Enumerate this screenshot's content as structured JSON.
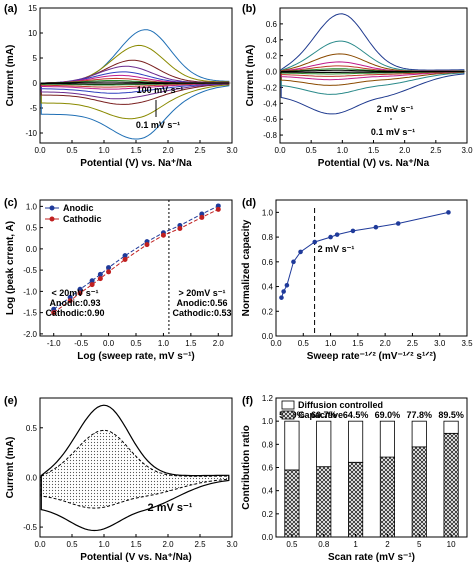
{
  "figure": {
    "panels": [
      {
        "id": "a",
        "panel_label": "(a)",
        "xlabel": "Potential (V) vs. Na⁺/Na",
        "ylabel": "Current (mA)"
      },
      {
        "id": "b",
        "panel_label": "(b)",
        "xlabel": "Potential (V) vs. Na⁺/Na",
        "ylabel": "Current (mA)"
      },
      {
        "id": "c",
        "panel_label": "(c)",
        "xlabel": "Log (sweep rate, mV s⁻¹)",
        "ylabel": "Log (peak crrent, A)"
      },
      {
        "id": "d",
        "panel_label": "(d)",
        "xlabel": "Sweep rate⁻¹ᐟ² (mV⁻¹ᐟ² s¹ᐟ²)",
        "ylabel": "Normalized capacity"
      },
      {
        "id": "e",
        "panel_label": "(e)",
        "xlabel": "Potential (V vs. Na⁺/Na)",
        "ylabel": "Current (mA)"
      },
      {
        "id": "f",
        "panel_label": "(f)",
        "xlabel": "Scan rate (mV s⁻¹)",
        "ylabel": "Contribution ratio"
      }
    ]
  },
  "chart_data": [
    {
      "id": "a",
      "type": "line",
      "panel_label": "(a)",
      "xlabel": "Potential (V) vs. Na⁺/Na",
      "ylabel": "Current (mA)",
      "xlim": [
        0,
        3
      ],
      "ylim": [
        -12,
        15
      ],
      "xticks": [
        "0.0",
        "0.5",
        "1.0",
        "1.5",
        "2.0",
        "2.5",
        "3.0"
      ],
      "yticks": [
        "-10",
        "-5",
        "0",
        "5",
        "10",
        "15"
      ],
      "annotations": [
        "100 mV s⁻¹",
        "0.1 mV s⁻¹"
      ],
      "series": [
        {
          "peak_x": 1.65,
          "anodic_peak": 10.5,
          "cathodic_min": -11.0,
          "color": "#1f6fb5"
        },
        {
          "peak_x": 1.55,
          "anodic_peak": 7.4,
          "cathodic_min": -7.0,
          "color": "#8a8a00"
        },
        {
          "peak_x": 1.45,
          "anodic_peak": 4.5,
          "cathodic_min": -4.2,
          "color": "#7a1f1f"
        },
        {
          "peak_x": 1.35,
          "anodic_peak": 3.3,
          "cathodic_min": -3.1,
          "color": "#6a2b8f"
        },
        {
          "peak_x": 1.3,
          "anodic_peak": 2.2,
          "cathodic_min": -2.0,
          "color": "#2e3fbf"
        },
        {
          "peak_x": 1.25,
          "anodic_peak": 1.5,
          "cathodic_min": -1.2,
          "color": "#c01c8c"
        },
        {
          "peak_x": 1.2,
          "anodic_peak": 0.9,
          "cathodic_min": -0.8,
          "color": "#c0392b"
        },
        {
          "peak_x": 1.15,
          "anodic_peak": 0.5,
          "cathodic_min": -0.4,
          "color": "#2a8a2a"
        },
        {
          "peak_x": 1.1,
          "anodic_peak": 0.2,
          "cathodic_min": -0.2,
          "color": "#000000"
        }
      ]
    },
    {
      "id": "b",
      "type": "line",
      "panel_label": "(b)",
      "xlabel": "Potential (V) vs. Na⁺/Na",
      "ylabel": "Current (mA)",
      "xlim": [
        0,
        3
      ],
      "ylim": [
        -0.9,
        0.8
      ],
      "xticks": [
        "0.0",
        "0.5",
        "1.0",
        "1.5",
        "2.0",
        "2.5",
        "3.0"
      ],
      "yticks": [
        "-0.8",
        "-0.6",
        "-0.4",
        "-0.2",
        "0.0",
        "0.2",
        "0.4",
        "0.6"
      ],
      "annotations": [
        "2 mV s⁻¹",
        "0.1 mV s⁻¹"
      ],
      "series": [
        {
          "peak_x": 0.98,
          "anodic_peak": 0.72,
          "cathodic_min": -0.52,
          "color": "#1f3a8f"
        },
        {
          "peak_x": 0.97,
          "anodic_peak": 0.38,
          "cathodic_min": -0.28,
          "color": "#2a8a8a"
        },
        {
          "peak_x": 0.96,
          "anodic_peak": 0.22,
          "cathodic_min": -0.17,
          "color": "#8a4a00"
        },
        {
          "peak_x": 0.95,
          "anodic_peak": 0.12,
          "cathodic_min": -0.1,
          "color": "#c01c8c"
        },
        {
          "peak_x": 0.94,
          "anodic_peak": 0.07,
          "cathodic_min": -0.06,
          "color": "#c0392b"
        },
        {
          "peak_x": 0.93,
          "anodic_peak": 0.035,
          "cathodic_min": -0.03,
          "color": "#2a8a2a"
        },
        {
          "peak_x": 0.92,
          "anodic_peak": 0.015,
          "cathodic_min": -0.012,
          "color": "#000000"
        }
      ]
    },
    {
      "id": "c",
      "type": "scatter",
      "panel_label": "(c)",
      "xlabel": "Log (sweep rate, mV s⁻¹)",
      "ylabel": "Log (peak crrent, A)",
      "xlim": [
        -1.25,
        2.25
      ],
      "ylim": [
        -2.05,
        1.15
      ],
      "xticks": [
        "-1.0",
        "-0.5",
        "0.0",
        "0.5",
        "1.0",
        "1.5",
        "2.0"
      ],
      "yticks": [
        "-2.0",
        "-1.5",
        "-1.0",
        "-0.5",
        "0.0",
        "0.5",
        "1.0"
      ],
      "legend": "top-left",
      "divider_x": 1.1,
      "annotations_left": [
        "< 20mV s⁻¹",
        "Anodic:0.93",
        "Cathodic:0.90"
      ],
      "annotations_right": [
        "> 20mV s⁻¹",
        "Anodic:0.56",
        "Cathodic:0.53"
      ],
      "series": [
        {
          "name": "Anodic",
          "color": "#1f3a9a",
          "x": [
            -1,
            -0.7,
            -0.52,
            -0.3,
            -0.15,
            0,
            0.3,
            0.7,
            1,
            1.3,
            1.7,
            2
          ],
          "y": [
            -1.42,
            -1.14,
            -0.95,
            -0.75,
            -0.6,
            -0.44,
            -0.16,
            0.17,
            0.38,
            0.55,
            0.82,
            1.01
          ]
        },
        {
          "name": "Cathodic",
          "color": "#c02020",
          "x": [
            -1,
            -0.7,
            -0.52,
            -0.3,
            -0.15,
            0,
            0.3,
            0.7,
            1,
            1.3,
            1.7,
            2
          ],
          "y": [
            -1.5,
            -1.22,
            -1.04,
            -0.84,
            -0.7,
            -0.54,
            -0.25,
            0.1,
            0.32,
            0.48,
            0.74,
            0.93
          ]
        }
      ]
    },
    {
      "id": "d",
      "type": "line",
      "panel_label": "(d)",
      "xlabel": "Sweep rate⁻¹ᐟ² (mV⁻¹ᐟ² s¹ᐟ²)",
      "ylabel": "Normalized capacity",
      "xlim": [
        0,
        3.5
      ],
      "ylim": [
        0,
        1.1
      ],
      "xticks": [
        "0.0",
        "0.5",
        "1.0",
        "1.5",
        "2.0",
        "2.5",
        "3.0",
        "3.5"
      ],
      "yticks": [
        "0.0",
        "0.2",
        "0.4",
        "0.6",
        "0.8",
        "1.0"
      ],
      "divider_x": 0.707,
      "annotation": "2 mV s⁻¹",
      "x": [
        0.1,
        0.14,
        0.2,
        0.32,
        0.45,
        0.71,
        1.0,
        1.12,
        1.41,
        1.83,
        2.24,
        3.16
      ],
      "y": [
        0.31,
        0.36,
        0.41,
        0.6,
        0.68,
        0.76,
        0.8,
        0.82,
        0.85,
        0.88,
        0.91,
        1.0
      ]
    },
    {
      "id": "e",
      "type": "area",
      "panel_label": "(e)",
      "xlabel": "Potential (V vs. Na⁺/Na)",
      "ylabel": "Current (mA)",
      "xlim": [
        0,
        3
      ],
      "ylim": [
        -0.6,
        0.8
      ],
      "xticks": [
        "0.0",
        "0.5",
        "1.0",
        "1.5",
        "2.0",
        "2.5",
        "3.0"
      ],
      "yticks": [
        "-0.5",
        "0.0",
        "0.5"
      ],
      "annotation": "2 mV s⁻¹",
      "total_anodic_peak": 0.72,
      "total_cathodic_min": -0.52,
      "capacitive_anodic_peak": 0.47,
      "capacitive_cathodic_min": -0.3
    },
    {
      "id": "f",
      "type": "bar",
      "panel_label": "(f)",
      "xlabel": "Scan rate (mV s⁻¹)",
      "ylabel": "Contribution ratio",
      "ylim": [
        0,
        1.2
      ],
      "yticks": [
        "0.0",
        "0.2",
        "0.4",
        "0.6",
        "0.8",
        "1.0",
        "1.2"
      ],
      "legend": "top-left",
      "categories": [
        "0.5",
        "0.8",
        "1",
        "2",
        "5",
        "10"
      ],
      "percent_labels": [
        "57.9%",
        "60.7%",
        "64.5%",
        "69.0%",
        "77.8%",
        "89.5%"
      ],
      "series": [
        {
          "name": "Diffusion controlled",
          "values": [
            0.421,
            0.393,
            0.355,
            0.31,
            0.222,
            0.105
          ]
        },
        {
          "name": "Capacitive",
          "values": [
            0.579,
            0.607,
            0.645,
            0.69,
            0.778,
            0.895
          ]
        }
      ]
    }
  ]
}
